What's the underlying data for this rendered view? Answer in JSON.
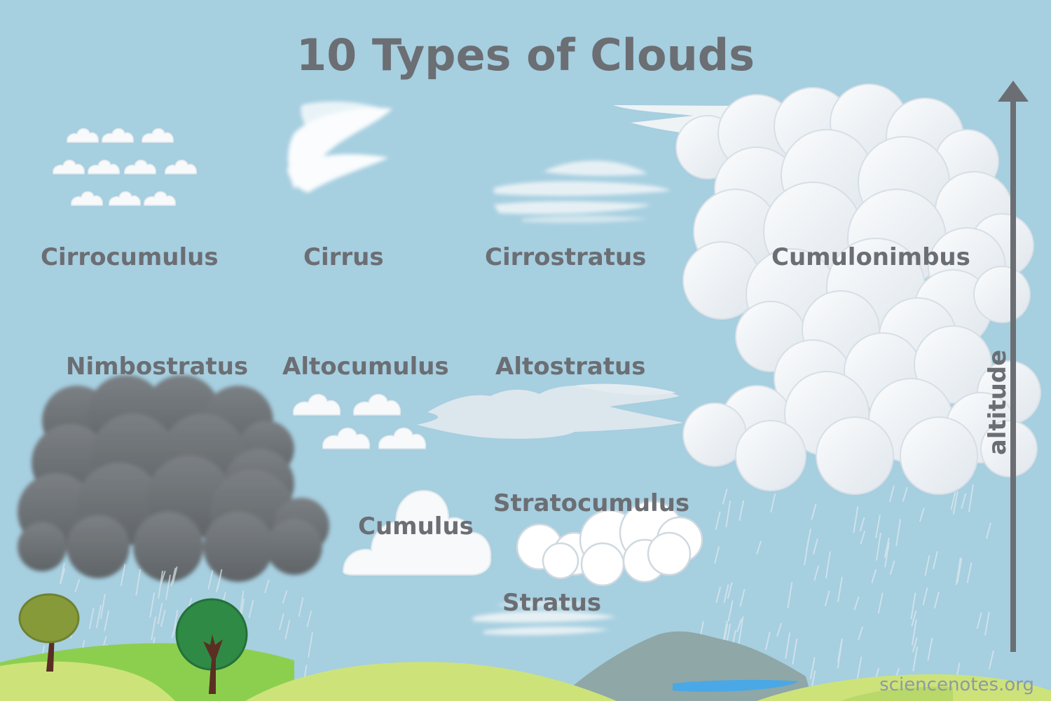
{
  "title": "10 Types of Clouds",
  "labels": {
    "cirrocumulus": "Cirrocumulus",
    "cirrus": "Cirrus",
    "cirrostratus": "Cirrostratus",
    "cumulonimbus": "Cumulonimbus",
    "nimbostratus": "Nimbostratus",
    "altocumulus": "Altocumulus",
    "altostratus": "Altostratus",
    "stratocumulus": "Stratocumulus",
    "cumulus": "Cumulus",
    "stratus": "Stratus"
  },
  "axis": {
    "label": "altitude"
  },
  "credit": "sciencenotes.org",
  "colors": {
    "sky": "#a6cfe0",
    "text": "#6b6e73",
    "cloud_white": "#f7f9fa",
    "cloud_shade": "#d6e0e7",
    "storm_dark": "#6f7477",
    "hill_light": "#cde37a",
    "hill_green": "#8ccf4f",
    "mountain": "#8fa7a6",
    "lake": "#4aa8e6",
    "tree_olive": "#879a3a",
    "tree_green": "#2f8a45",
    "trunk": "#5a2e23",
    "arrow": "#6b6e73"
  }
}
